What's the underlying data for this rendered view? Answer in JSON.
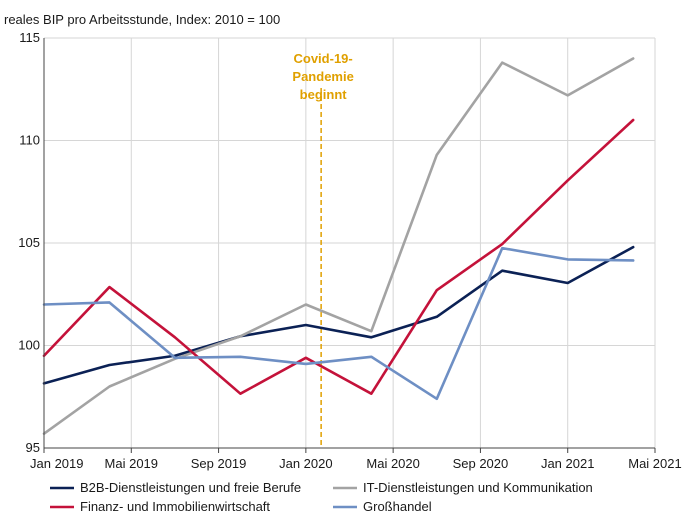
{
  "chart_data": {
    "type": "line",
    "ylabel": "reales BIP pro Arbeitsstunde, Index: 2010 = 100",
    "ylim": [
      95,
      115
    ],
    "yticks": [
      "95",
      "100",
      "105",
      "110",
      "115"
    ],
    "xlim": [
      0,
      28
    ],
    "xticks": [
      {
        "pos": 0,
        "label": "Jan 2019"
      },
      {
        "pos": 4,
        "label": "Mai 2019"
      },
      {
        "pos": 8,
        "label": "Sep 2019"
      },
      {
        "pos": 12,
        "label": "Jan 2020"
      },
      {
        "pos": 16,
        "label": "Mai 2020"
      },
      {
        "pos": 20,
        "label": "Sep 2020"
      },
      {
        "pos": 24,
        "label": "Jan 2021"
      },
      {
        "pos": 28,
        "label": "Mai 2021"
      }
    ],
    "x": [
      0,
      3,
      6,
      9,
      12,
      15,
      18,
      21,
      24,
      27
    ],
    "grid": true,
    "legend_position": "bottom",
    "annotation": {
      "lines": [
        "Covid-19-",
        "Pandemie",
        "beginnt"
      ],
      "x": 12.7,
      "color": "#e0a000"
    },
    "series": [
      {
        "name": "B2B-Dienstleistungen und freie Berufe",
        "color": "#0b2155",
        "values": [
          98.15,
          99.05,
          99.5,
          100.45,
          101.0,
          100.4,
          101.4,
          103.65,
          103.05,
          104.8
        ]
      },
      {
        "name": "IT-Dienstleistungen und Kommunikation",
        "color": "#a3a3a3",
        "values": [
          95.7,
          98.0,
          99.35,
          100.45,
          102.0,
          100.7,
          109.3,
          113.8,
          112.2,
          114.0
        ]
      },
      {
        "name": "Finanz- und Immobilienwirtschaft",
        "color": "#c4123a",
        "values": [
          99.5,
          102.85,
          100.4,
          97.65,
          99.4,
          97.65,
          102.7,
          104.95,
          108.05,
          111.0
        ]
      },
      {
        "name": "Großhandel",
        "color": "#6e8fc4",
        "values": [
          102.0,
          102.1,
          99.4,
          99.45,
          99.1,
          99.45,
          97.4,
          104.75,
          104.2,
          104.15
        ]
      }
    ]
  }
}
